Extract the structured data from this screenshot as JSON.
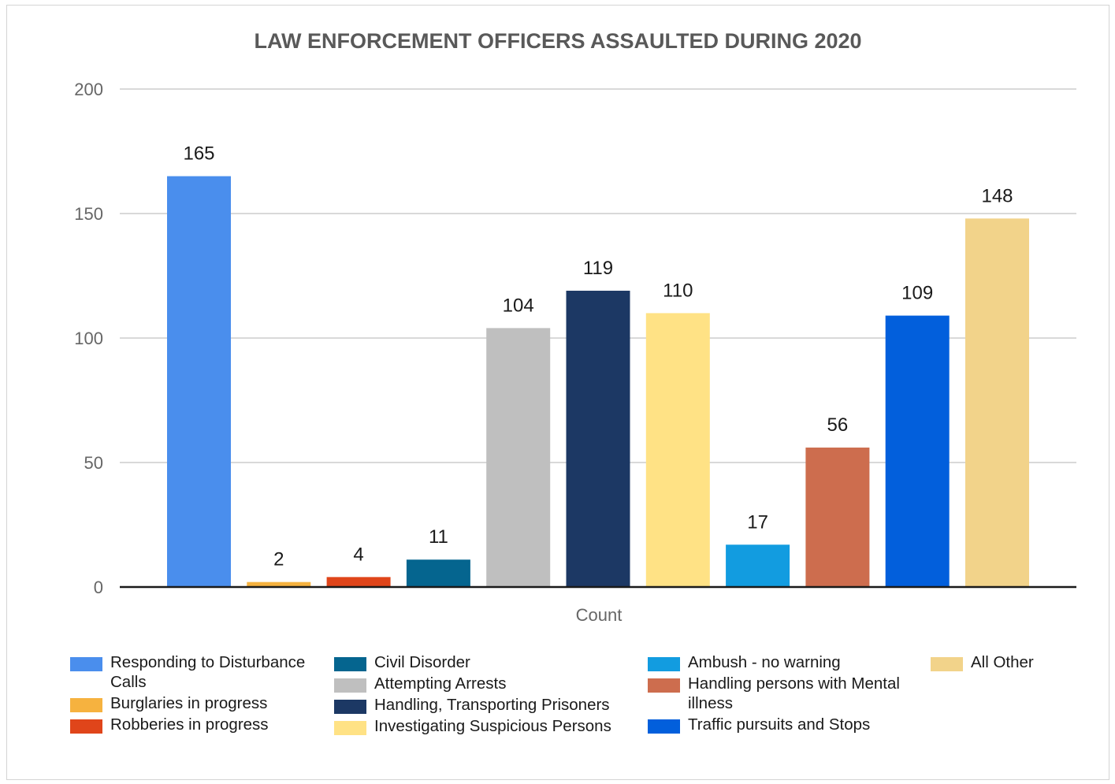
{
  "chart_data": {
    "type": "bar",
    "title": "LAW ENFORCEMENT OFFICERS ASSAULTED DURING 2020",
    "xlabel": "Count",
    "ylabel": "",
    "ylim": [
      0,
      200
    ],
    "yticks": [
      0,
      50,
      100,
      150,
      200
    ],
    "grid": true,
    "legend_position": "bottom",
    "categories": [
      "Count"
    ],
    "series": [
      {
        "name": "Responding to Disturbance Calls",
        "values": [
          165
        ],
        "color": "#4a8eed"
      },
      {
        "name": "Burglaries in progress",
        "values": [
          2
        ],
        "color": "#f6b23f"
      },
      {
        "name": "Robberies in progress",
        "values": [
          4
        ],
        "color": "#e0451a"
      },
      {
        "name": "Civil Disorder",
        "values": [
          11
        ],
        "color": "#05658f"
      },
      {
        "name": "Attempting Arrests",
        "values": [
          104
        ],
        "color": "#bfbfbf"
      },
      {
        "name": "Handling, Transporting Prisoners",
        "values": [
          119
        ],
        "color": "#1c3864"
      },
      {
        "name": "Investigating Suspicious Persons",
        "values": [
          110
        ],
        "color": "#ffe285"
      },
      {
        "name": "Ambush - no warning",
        "values": [
          17
        ],
        "color": "#129ce0"
      },
      {
        "name": "Handling persons with Mental illness",
        "values": [
          56
        ],
        "color": "#cd6d4e"
      },
      {
        "name": "Traffic pursuits and Stops",
        "values": [
          109
        ],
        "color": "#025fdc"
      },
      {
        "name": "All Other",
        "values": [
          148
        ],
        "color": "#f2d38a"
      }
    ]
  }
}
